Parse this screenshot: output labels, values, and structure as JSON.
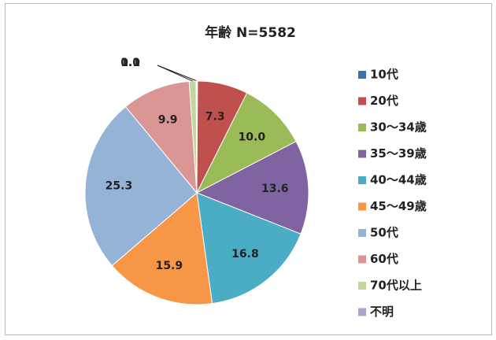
{
  "chart_data": {
    "type": "pie",
    "title": "年齢 N=5582",
    "categories": [
      "10代",
      "20代",
      "30～34歳",
      "35～39歳",
      "40～44歳",
      "45～49歳",
      "50代",
      "60代",
      "70代以上",
      "不明"
    ],
    "values": [
      0.1,
      7.3,
      10.0,
      13.6,
      16.8,
      15.9,
      25.3,
      9.9,
      1.0,
      0.1
    ],
    "value_labels": [
      "0.1",
      "7.3",
      "10.0",
      "13.6",
      "16.8",
      "15.9",
      "25.3",
      "9.9",
      "1.0",
      null
    ],
    "colors": [
      "#3f6fa8",
      "#c0504d",
      "#9bbb59",
      "#8064a2",
      "#4bacc6",
      "#f79646",
      "#95b3d7",
      "#d99694",
      "#c3d69b",
      "#b3a2c7"
    ],
    "legend": "right"
  }
}
